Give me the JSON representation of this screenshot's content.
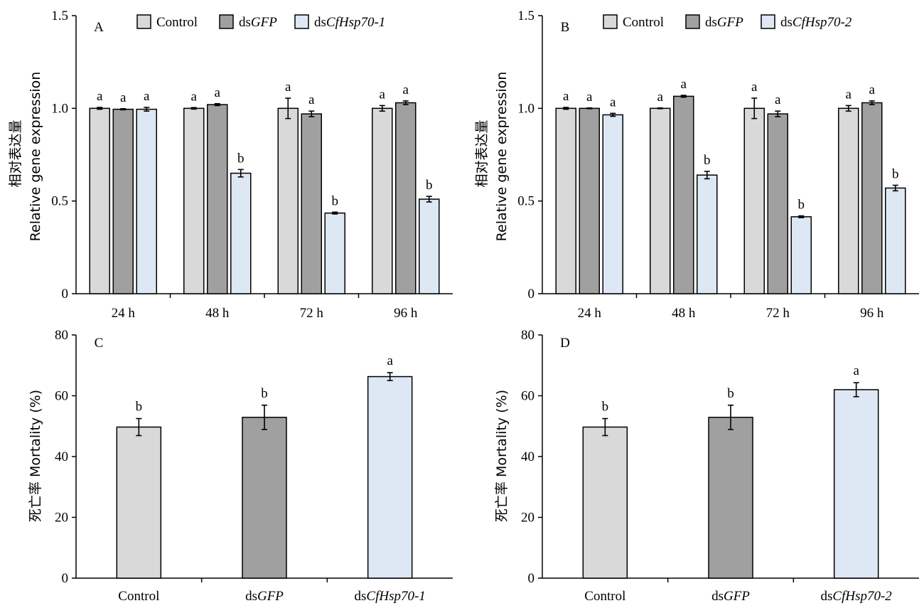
{
  "colors": {
    "control": "#d9d9d9",
    "dsgfp": "#a0a0a0",
    "dshsp": "#dde8f4",
    "stroke": "#000000"
  },
  "chart_data": [
    {
      "panel": "A",
      "type": "bar",
      "categories": [
        "24 h",
        "48 h",
        "72 h",
        "96 h"
      ],
      "ylim": [
        0,
        1.5
      ],
      "yticks": [
        "0",
        "0.5",
        "1.0",
        "1.5"
      ],
      "ylabel_cn": "相对表达量",
      "ylabel_en": "Relative gene expression",
      "legend": [
        {
          "prefix": "",
          "italic": "",
          "plain": "Control"
        },
        {
          "prefix": "ds",
          "italic": "GFP",
          "plain": ""
        },
        {
          "prefix": "ds",
          "italic": "CfHsp70-1",
          "plain": ""
        }
      ],
      "series": [
        {
          "name": "Control",
          "color": "control",
          "values": [
            1.0,
            1.0,
            1.0,
            1.0
          ],
          "errors": [
            0.005,
            0.004,
            0.055,
            0.015
          ],
          "letters": [
            "a",
            "a",
            "a",
            "a"
          ]
        },
        {
          "name": "dsGFP",
          "color": "dsgfp",
          "values": [
            0.995,
            1.02,
            0.97,
            1.03
          ],
          "errors": [
            0.003,
            0.005,
            0.015,
            0.01
          ],
          "letters": [
            "a",
            "a",
            "a",
            "a"
          ]
        },
        {
          "name": "dsCfHsp70-1",
          "color": "dshsp",
          "values": [
            0.995,
            0.65,
            0.435,
            0.51
          ],
          "errors": [
            0.01,
            0.02,
            0.005,
            0.015
          ],
          "letters": [
            "a",
            "b",
            "b",
            "b"
          ]
        }
      ]
    },
    {
      "panel": "B",
      "type": "bar",
      "categories": [
        "24 h",
        "48 h",
        "72 h",
        "96 h"
      ],
      "ylim": [
        0,
        1.5
      ],
      "yticks": [
        "0",
        "0.5",
        "1.0",
        "1.5"
      ],
      "ylabel_cn": "相对表达量",
      "ylabel_en": "Relative gene expression",
      "legend": [
        {
          "prefix": "",
          "italic": "",
          "plain": "Control"
        },
        {
          "prefix": "ds",
          "italic": "GFP",
          "plain": ""
        },
        {
          "prefix": "ds",
          "italic": "CfHsp70-2",
          "plain": ""
        }
      ],
      "series": [
        {
          "name": "Control",
          "color": "control",
          "values": [
            1.0,
            1.0,
            1.0,
            1.0
          ],
          "errors": [
            0.005,
            0.002,
            0.055,
            0.015
          ],
          "letters": [
            "a",
            "a",
            "a",
            "a"
          ]
        },
        {
          "name": "dsGFP",
          "color": "dsgfp",
          "values": [
            1.0,
            1.065,
            0.97,
            1.03
          ],
          "errors": [
            0.002,
            0.005,
            0.015,
            0.01
          ],
          "letters": [
            "a",
            "a",
            "a",
            "a"
          ]
        },
        {
          "name": "dsCfHsp70-2",
          "color": "dshsp",
          "values": [
            0.965,
            0.64,
            0.415,
            0.57
          ],
          "errors": [
            0.008,
            0.02,
            0.005,
            0.015
          ],
          "letters": [
            "a",
            "b",
            "b",
            "b"
          ]
        }
      ]
    },
    {
      "panel": "C",
      "type": "bar",
      "categories": [
        {
          "prefix": "",
          "italic": "",
          "plain": "Control"
        },
        {
          "prefix": "ds",
          "italic": "GFP",
          "plain": ""
        },
        {
          "prefix": "ds",
          "italic": "CfHsp70-1",
          "plain": ""
        }
      ],
      "ylim": [
        0,
        80
      ],
      "yticks": [
        "0",
        "20",
        "40",
        "60",
        "80"
      ],
      "ylabel_cn": "死亡率",
      "ylabel_en": "Mortality (%)",
      "values": [
        49.7,
        52.9,
        66.3
      ],
      "errors": [
        2.8,
        4.0,
        1.3
      ],
      "colors": [
        "control",
        "dsgfp",
        "dshsp"
      ],
      "letters": [
        "b",
        "b",
        "a"
      ]
    },
    {
      "panel": "D",
      "type": "bar",
      "categories": [
        {
          "prefix": "",
          "italic": "",
          "plain": "Control"
        },
        {
          "prefix": "ds",
          "italic": "GFP",
          "plain": ""
        },
        {
          "prefix": "ds",
          "italic": "CfHsp70-2",
          "plain": ""
        }
      ],
      "ylim": [
        0,
        80
      ],
      "yticks": [
        "0",
        "20",
        "40",
        "60",
        "80"
      ],
      "ylabel_cn": "死亡率",
      "ylabel_en": "Mortality (%)",
      "values": [
        49.7,
        52.9,
        62.0
      ],
      "errors": [
        2.8,
        4.0,
        2.3
      ],
      "colors": [
        "control",
        "dsgfp",
        "dshsp"
      ],
      "letters": [
        "b",
        "b",
        "a"
      ]
    }
  ]
}
